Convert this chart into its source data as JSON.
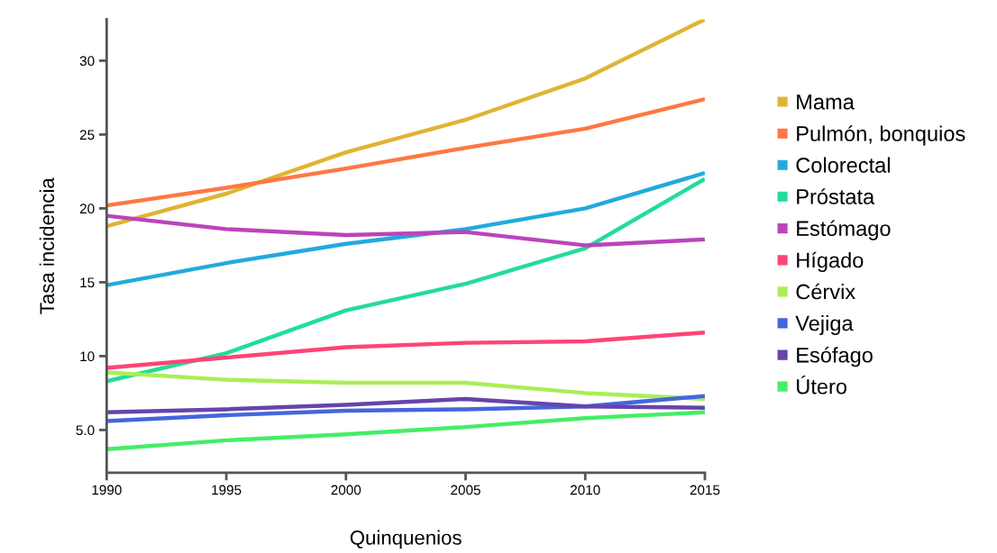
{
  "chart_data": {
    "type": "line",
    "xlabel": "Quinquenios",
    "ylabel": "Tasa incidencia",
    "x": [
      1990,
      1995,
      2000,
      2005,
      2010,
      2015
    ],
    "xlim": [
      1990,
      2015
    ],
    "xticks": [
      1990,
      1995,
      2000,
      2005,
      2010,
      2015
    ],
    "ylim": [
      2.1,
      32.8
    ],
    "yticks": [
      {
        "value": 5,
        "label": "5.0"
      },
      10,
      15,
      20,
      25,
      30
    ],
    "grid": false,
    "legend": "right",
    "marker": "none",
    "line_style": "solid",
    "series": [
      {
        "name": "Mama",
        "color": "#e0b433",
        "values": [
          18.8,
          21.0,
          23.8,
          26.0,
          28.8,
          32.8
        ]
      },
      {
        "name": "Pulmón, bonquios",
        "color": "#ff7744",
        "values": [
          20.2,
          21.4,
          22.7,
          24.1,
          25.4,
          27.4
        ]
      },
      {
        "name": "Colorectal",
        "color": "#22aadd",
        "values": [
          14.8,
          16.3,
          17.6,
          18.6,
          20.0,
          22.4
        ]
      },
      {
        "name": "Próstata",
        "color": "#22dd99",
        "values": [
          8.3,
          10.2,
          13.1,
          14.9,
          17.3,
          22.0
        ]
      },
      {
        "name": "Estómago",
        "color": "#bb44bb",
        "values": [
          19.5,
          18.6,
          18.2,
          18.4,
          17.5,
          17.9
        ]
      },
      {
        "name": "Hígado",
        "color": "#ff4477",
        "values": [
          9.2,
          9.9,
          10.6,
          10.9,
          11.0,
          11.6
        ]
      },
      {
        "name": "Cérvix",
        "color": "#aaee55",
        "values": [
          8.9,
          8.4,
          8.2,
          8.2,
          7.5,
          7.1
        ]
      },
      {
        "name": "Vejiga",
        "color": "#4466dd",
        "values": [
          5.6,
          6.0,
          6.3,
          6.4,
          6.6,
          7.3
        ]
      },
      {
        "name": "Esófago",
        "color": "#6644aa",
        "values": [
          6.2,
          6.4,
          6.7,
          7.1,
          6.6,
          6.5
        ]
      },
      {
        "name": "Útero",
        "color": "#44ee66",
        "values": [
          3.7,
          4.3,
          4.7,
          5.2,
          5.8,
          6.2
        ]
      }
    ]
  }
}
